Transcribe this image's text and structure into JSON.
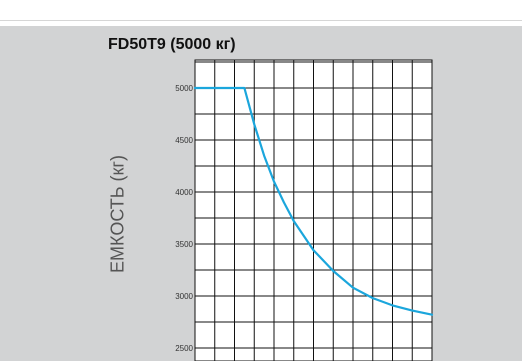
{
  "chart_data": {
    "type": "line",
    "title": "FD50T9 (5000 кг)",
    "ylabel": "ЕМКОСТЬ (кг)",
    "xlabel": "",
    "ylim": [
      2450,
      5000
    ],
    "xlim": [
      0,
      12
    ],
    "yticks": [
      "5000",
      "4500",
      "4000",
      "3500",
      "3000",
      "2500"
    ],
    "ytick_values": [
      5000,
      4500,
      4000,
      3500,
      3000,
      2500
    ],
    "grid": true,
    "line_color": "#1ba6dc",
    "series": [
      {
        "x": [
          0,
          2.5,
          3,
          3.5,
          4,
          4.5,
          5,
          6,
          7,
          8,
          9,
          10,
          11,
          12
        ],
        "values": [
          5000,
          5000,
          4650,
          4350,
          4100,
          3900,
          3720,
          3440,
          3240,
          3080,
          2980,
          2910,
          2860,
          2820
        ]
      }
    ]
  },
  "colors": {
    "panel": "#d2d3d4",
    "plot_bg": "#ffffff",
    "grid": "#111111"
  }
}
